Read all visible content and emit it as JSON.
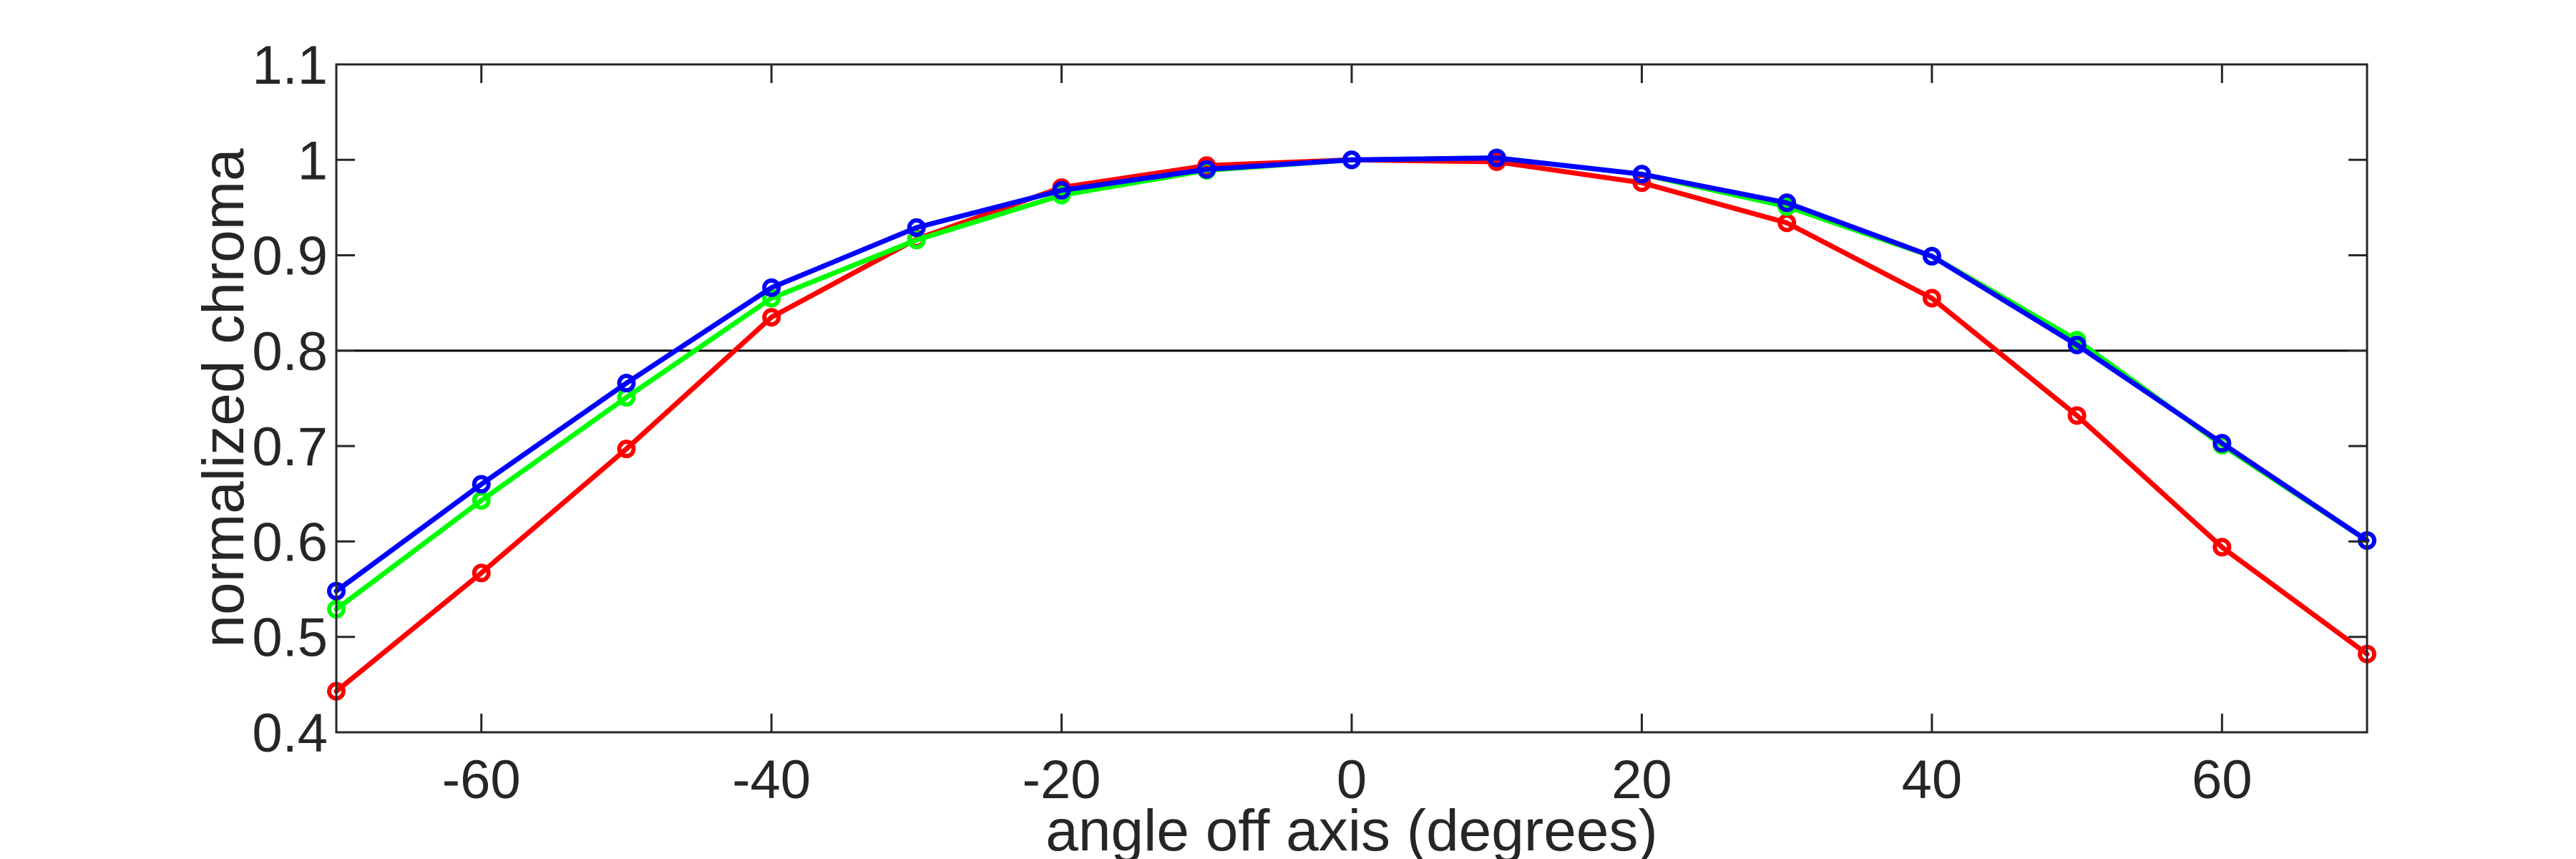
{
  "chart_data": {
    "type": "line",
    "title": "",
    "xlabel": "angle off axis (degrees)",
    "ylabel": "normalized chroma",
    "xlim": [
      -70,
      70
    ],
    "ylim": [
      0.4,
      1.1
    ],
    "xticks": [
      -60,
      -40,
      -20,
      0,
      20,
      40,
      60
    ],
    "yticks": [
      0.4,
      0.5,
      0.6,
      0.7,
      0.8,
      0.9,
      1,
      1.1
    ],
    "xtick_labels": [
      "-60",
      "-40",
      "-20",
      "0",
      "20",
      "40",
      "60"
    ],
    "ytick_labels": [
      "0.4",
      "0.5",
      "0.6",
      "0.7",
      "0.8",
      "0.9",
      "1",
      "1.1"
    ],
    "reference_line": 0.8,
    "grid": false,
    "legend": "none",
    "marker": "circle",
    "x": [
      -70,
      -60,
      -50,
      -40,
      -30,
      -20,
      -10,
      0,
      10,
      20,
      30,
      40,
      50,
      60,
      70
    ],
    "series": [
      {
        "color": "#ff0000",
        "values": [
          0.443,
          0.567,
          0.697,
          0.835,
          0.917,
          0.971,
          0.994,
          1.0,
          0.998,
          0.976,
          0.934,
          0.855,
          0.732,
          0.594,
          0.482
        ]
      },
      {
        "color": "#00ff00",
        "values": [
          0.529,
          0.643,
          0.751,
          0.855,
          0.916,
          0.963,
          0.989,
          1.0,
          1.002,
          0.985,
          0.951,
          0.899,
          0.811,
          0.701,
          0.601
        ]
      },
      {
        "color": "#0000ff",
        "values": [
          0.548,
          0.66,
          0.766,
          0.866,
          0.929,
          0.968,
          0.99,
          1.0,
          1.002,
          0.985,
          0.955,
          0.899,
          0.806,
          0.703,
          0.601
        ]
      }
    ]
  }
}
